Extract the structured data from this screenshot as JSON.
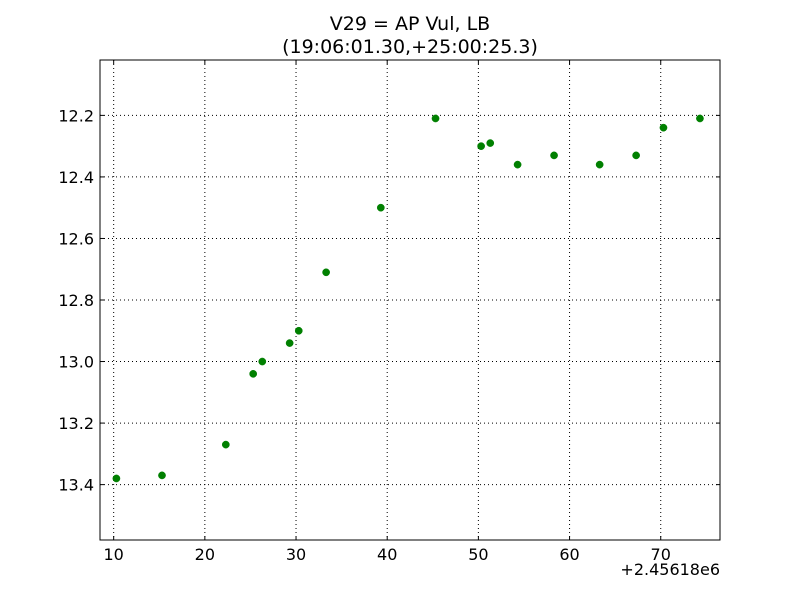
{
  "chart_data": {
    "type": "scatter",
    "title": "V29 = AP Vul, LB",
    "subtitle": "(19:06:01.30,+25:00:25.3)",
    "xlabel": "",
    "ylabel": "",
    "x_offset_label": "+2.45618e6",
    "xlim": [
      8.5,
      76.5
    ],
    "ylim": [
      13.58,
      12.02
    ],
    "y_inverted": true,
    "grid": true,
    "grid_style": "dotted",
    "marker_color": "#008000",
    "x_ticks": [
      10,
      20,
      30,
      40,
      50,
      60,
      70
    ],
    "x_tick_labels": [
      "10",
      "20",
      "30",
      "40",
      "50",
      "60",
      "70"
    ],
    "y_ticks": [
      12.2,
      12.4,
      12.6,
      12.8,
      13.0,
      13.2,
      13.4
    ],
    "y_tick_labels": [
      "12.2",
      "12.4",
      "12.6",
      "12.8",
      "13.0",
      "13.2",
      "13.4"
    ],
    "points": [
      {
        "x": 10.3,
        "y": 13.38
      },
      {
        "x": 15.3,
        "y": 13.37
      },
      {
        "x": 22.3,
        "y": 13.27
      },
      {
        "x": 25.3,
        "y": 13.04
      },
      {
        "x": 26.3,
        "y": 13.0
      },
      {
        "x": 29.3,
        "y": 12.94
      },
      {
        "x": 30.3,
        "y": 12.9
      },
      {
        "x": 33.3,
        "y": 12.71
      },
      {
        "x": 39.3,
        "y": 12.5
      },
      {
        "x": 45.3,
        "y": 12.21
      },
      {
        "x": 50.3,
        "y": 12.3
      },
      {
        "x": 51.3,
        "y": 12.29
      },
      {
        "x": 54.3,
        "y": 12.36
      },
      {
        "x": 58.3,
        "y": 12.33
      },
      {
        "x": 63.3,
        "y": 12.36
      },
      {
        "x": 67.3,
        "y": 12.33
      },
      {
        "x": 70.3,
        "y": 12.24
      },
      {
        "x": 74.3,
        "y": 12.21
      }
    ]
  }
}
